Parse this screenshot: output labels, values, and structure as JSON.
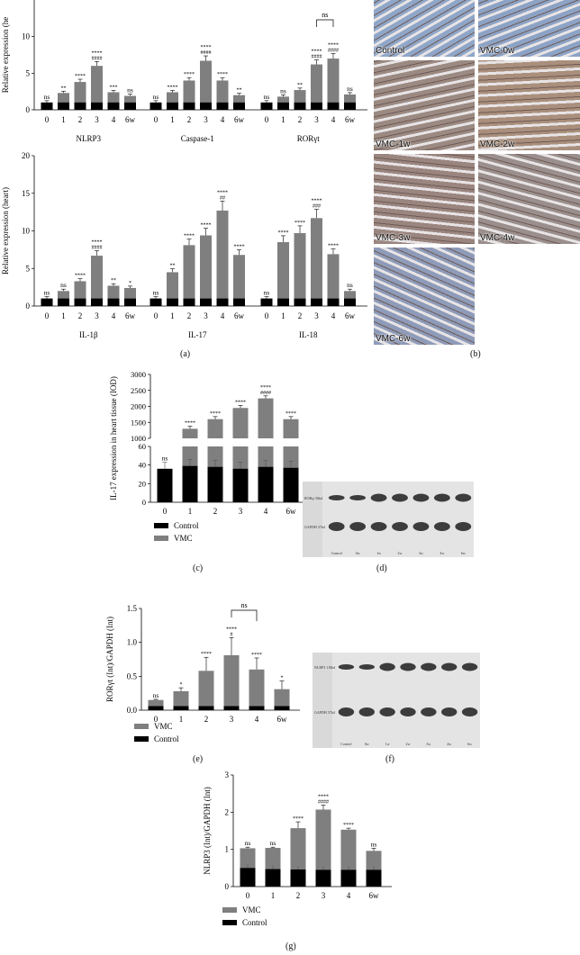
{
  "panel_labels": {
    "a": "(a)",
    "b": "(b)",
    "c": "(c)",
    "d": "(d)",
    "e": "(e)",
    "f": "(f)",
    "g": "(g)"
  },
  "colors": {
    "vmc": "#7f7f7f",
    "control": "#000000"
  },
  "tissue_images": [
    {
      "label": "Control",
      "color": "#8fa6c8"
    },
    {
      "label": "VMC-0w",
      "color": "#8ca3c6"
    },
    {
      "label": "VMC-1w",
      "color": "#9b8a82"
    },
    {
      "label": "VMC-2w",
      "color": "#a98f7c"
    },
    {
      "label": "VMC-3w",
      "color": "#9a857f"
    },
    {
      "label": "VMC-4w",
      "color": "#9a8f8c"
    },
    {
      "label": "VMC-6w",
      "color": "#8e9bb9"
    }
  ],
  "blot_d": {
    "left_labels": [
      "RORγt 56kd",
      "GAPDH 37kd"
    ],
    "lane_labels": [
      "Control",
      "0w",
      "1w",
      "2w",
      "3w",
      "4w",
      "6w"
    ]
  },
  "blot_f": {
    "left_labels": [
      "NLRP3 118kd",
      "GAPDH 37kd"
    ],
    "lane_labels": [
      "Control",
      "0w",
      "1w",
      "2w",
      "3w",
      "4w",
      "6w"
    ]
  },
  "chart_data": [
    {
      "id": "a-top",
      "type": "bar",
      "ylabel": "Relative expression (he",
      "ylim": [
        0,
        15
      ],
      "yticks": [
        0,
        5,
        10
      ],
      "group_names": [
        "NLRP3",
        "Caspase-1",
        "RORγt"
      ],
      "categories": [
        "0",
        "1",
        "2",
        "3",
        "4",
        "6w"
      ],
      "groups": [
        {
          "vmc": [
            1.0,
            2.3,
            3.8,
            6.0,
            2.4,
            1.9
          ],
          "control": [
            1,
            1,
            1,
            1,
            1,
            1
          ],
          "labels": [
            "ns",
            "**",
            "****",
            "****\n####",
            "***",
            "ns"
          ]
        },
        {
          "vmc": [
            1.0,
            2.4,
            4.0,
            6.7,
            4.0,
            2.0
          ],
          "control": [
            1,
            1,
            1,
            1,
            1,
            1
          ],
          "labels": [
            "ns",
            "****",
            "****",
            "****\n####",
            "****",
            "**"
          ]
        },
        {
          "vmc": [
            1.0,
            1.8,
            2.7,
            6.2,
            7.0,
            2.1
          ],
          "control": [
            1,
            1,
            1,
            1,
            1,
            1
          ],
          "labels": [
            "ns",
            "ns",
            "**",
            "****\n####",
            "****\n####",
            "ns"
          ]
        }
      ],
      "bracket": {
        "text": "ns"
      }
    },
    {
      "id": "a-bottom",
      "type": "bar",
      "ylabel": "Relative expression (heart)",
      "ylim": [
        0,
        20
      ],
      "yticks": [
        0,
        5,
        10,
        15,
        20
      ],
      "group_names": [
        "IL-1β",
        "IL-17",
        "IL-18"
      ],
      "categories": [
        "0",
        "1",
        "2",
        "3",
        "4",
        "6w"
      ],
      "groups": [
        {
          "vmc": [
            1.0,
            2.0,
            3.3,
            6.7,
            2.7,
            2.4
          ],
          "control": [
            1,
            1,
            1,
            1,
            1,
            1
          ],
          "labels": [
            "ns",
            "ns",
            "****",
            "****\n####",
            "**",
            "*"
          ]
        },
        {
          "vmc": [
            1.0,
            4.5,
            8.1,
            9.4,
            12.7,
            6.8
          ],
          "control": [
            1,
            1,
            1,
            1,
            1,
            1
          ],
          "labels": [
            "ns",
            "**",
            "****",
            "****",
            "****\n##",
            "****"
          ]
        },
        {
          "vmc": [
            1.0,
            8.5,
            9.7,
            11.7,
            6.9,
            2.0
          ],
          "control": [
            1,
            1,
            1,
            1,
            1,
            1
          ],
          "labels": [
            "ns",
            "****",
            "****",
            "****\n###",
            "****",
            "ns"
          ]
        }
      ]
    },
    {
      "id": "c",
      "type": "bar",
      "ylabel": "IL-17 expression in heart tissue (IOD)",
      "categories": [
        "0",
        "1",
        "2",
        "3",
        "4",
        "6w"
      ],
      "broken_axis": {
        "lower": [
          0,
          60
        ],
        "lower_ticks": [
          0,
          20,
          40,
          60
        ],
        "upper": [
          1000,
          3000
        ],
        "upper_ticks": [
          1000,
          1500,
          2000,
          2500,
          3000
        ]
      },
      "vmc": [
        36,
        1300,
        1600,
        1950,
        2250,
        1600
      ],
      "control": [
        36,
        39,
        38,
        36,
        38,
        37
      ],
      "labels": [
        "ns",
        "****",
        "****",
        "****",
        "****\n####",
        "****"
      ],
      "legend": [
        "Control",
        "VMC"
      ]
    },
    {
      "id": "e",
      "type": "bar",
      "ylabel": "RORγt (Int)/GAPDH (Int)",
      "ylim": [
        0,
        1.5
      ],
      "yticks": [
        0.0,
        0.5,
        1.0,
        1.5
      ],
      "categories": [
        "0",
        "1",
        "2",
        "3",
        "4",
        "6w"
      ],
      "vmc": [
        0.15,
        0.28,
        0.58,
        0.81,
        0.6,
        0.31
      ],
      "control": [
        0.06,
        0.06,
        0.06,
        0.06,
        0.06,
        0.06
      ],
      "labels": [
        "ns",
        "*",
        "****",
        "****\n#",
        "****",
        "*"
      ],
      "bracket": {
        "text": "ns"
      },
      "legend": [
        "VMC",
        "Control"
      ]
    },
    {
      "id": "g",
      "type": "bar",
      "ylabel": "NLRP3 (Int)/GAPDH (Int)",
      "ylim": [
        0,
        3
      ],
      "yticks": [
        0,
        1,
        2,
        3
      ],
      "categories": [
        "0",
        "1",
        "2",
        "3",
        "4",
        "6w"
      ],
      "vmc": [
        1.03,
        1.04,
        1.57,
        2.07,
        1.53,
        0.96
      ],
      "control": [
        0.5,
        0.47,
        0.46,
        0.45,
        0.45,
        0.45
      ],
      "labels": [
        "ns",
        "ns",
        "****",
        "****\n####",
        "****",
        "ns"
      ],
      "legend": [
        "VMC",
        "Control"
      ]
    }
  ]
}
